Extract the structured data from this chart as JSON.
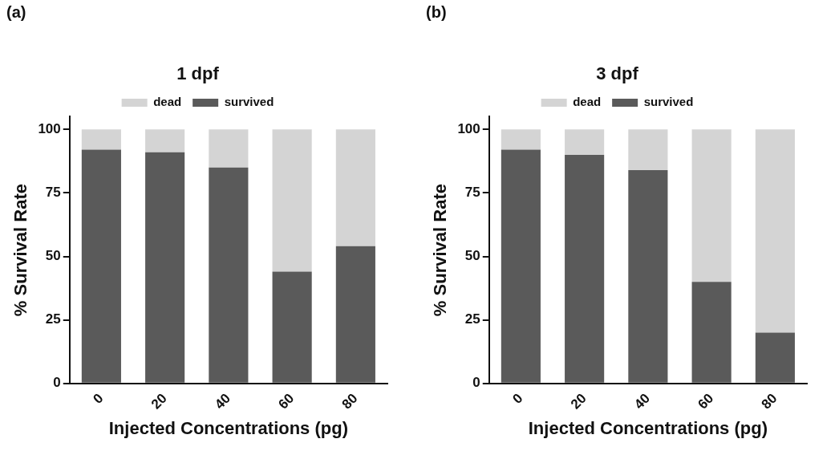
{
  "chart_data": [
    {
      "type": "bar",
      "title": "1 dpf",
      "annotations": [
        "(a)"
      ],
      "xlabel": "Injected Concentrations (pg)",
      "ylabel": "% Survival Rate",
      "categories": [
        "0",
        "20",
        "40",
        "60",
        "80"
      ],
      "stacked": true,
      "series": [
        {
          "name": "survived",
          "color": "#5a5a5a",
          "values": [
            92,
            91,
            85,
            44,
            54
          ]
        },
        {
          "name": "dead",
          "color": "#d4d4d4",
          "values": [
            8,
            9,
            15,
            56,
            46
          ]
        }
      ],
      "ylim": [
        0,
        105
      ],
      "yticks": [
        0,
        25,
        50,
        75,
        100
      ],
      "grid": false,
      "legend": "top"
    },
    {
      "type": "bar",
      "title": "3 dpf",
      "annotations": [
        "(b)"
      ],
      "xlabel": "Injected Concentrations (pg)",
      "ylabel": "% Survival Rate",
      "categories": [
        "0",
        "20",
        "40",
        "60",
        "80"
      ],
      "stacked": true,
      "series": [
        {
          "name": "survived",
          "color": "#5a5a5a",
          "values": [
            92,
            90,
            84,
            40,
            20
          ]
        },
        {
          "name": "dead",
          "color": "#d4d4d4",
          "values": [
            8,
            10,
            16,
            60,
            80
          ]
        }
      ],
      "ylim": [
        0,
        105
      ],
      "yticks": [
        0,
        25,
        50,
        75,
        100
      ],
      "grid": false,
      "legend": "top"
    }
  ]
}
